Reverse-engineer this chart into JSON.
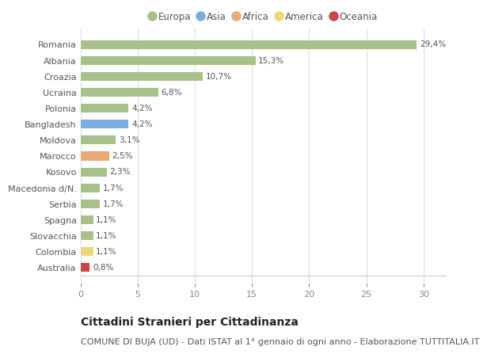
{
  "countries": [
    "Romania",
    "Albania",
    "Croazia",
    "Ucraina",
    "Polonia",
    "Bangladesh",
    "Moldova",
    "Marocco",
    "Kosovo",
    "Macedonia d/N.",
    "Serbia",
    "Spagna",
    "Slovacchia",
    "Colombia",
    "Australia"
  ],
  "values": [
    29.4,
    15.3,
    10.7,
    6.8,
    4.2,
    4.2,
    3.1,
    2.5,
    2.3,
    1.7,
    1.7,
    1.1,
    1.1,
    1.1,
    0.8
  ],
  "labels": [
    "29,4%",
    "15,3%",
    "10,7%",
    "6,8%",
    "4,2%",
    "4,2%",
    "3,1%",
    "2,5%",
    "2,3%",
    "1,7%",
    "1,7%",
    "1,1%",
    "1,1%",
    "1,1%",
    "0,8%"
  ],
  "continents": [
    "Europa",
    "Europa",
    "Europa",
    "Europa",
    "Europa",
    "Asia",
    "Europa",
    "Africa",
    "Europa",
    "Europa",
    "Europa",
    "Europa",
    "Europa",
    "America",
    "Oceania"
  ],
  "continent_colors": {
    "Europa": "#a8c08a",
    "Asia": "#7aade0",
    "Africa": "#e8a878",
    "America": "#e8d878",
    "Oceania": "#cc4444"
  },
  "legend_continents": [
    "Europa",
    "Asia",
    "Africa",
    "America",
    "Oceania"
  ],
  "background_color": "#ffffff",
  "grid_color": "#dddddd",
  "xlim": [
    0,
    32
  ],
  "xticks": [
    0,
    5,
    10,
    15,
    20,
    25,
    30
  ],
  "title": "Cittadini Stranieri per Cittadinanza",
  "subtitle": "COMUNE DI BUJA (UD) - Dati ISTAT al 1° gennaio di ogni anno - Elaborazione TUTTITALIA.IT",
  "title_fontsize": 10,
  "subtitle_fontsize": 8,
  "bar_height": 0.55,
  "label_fontsize": 7.5,
  "tick_fontsize": 8
}
